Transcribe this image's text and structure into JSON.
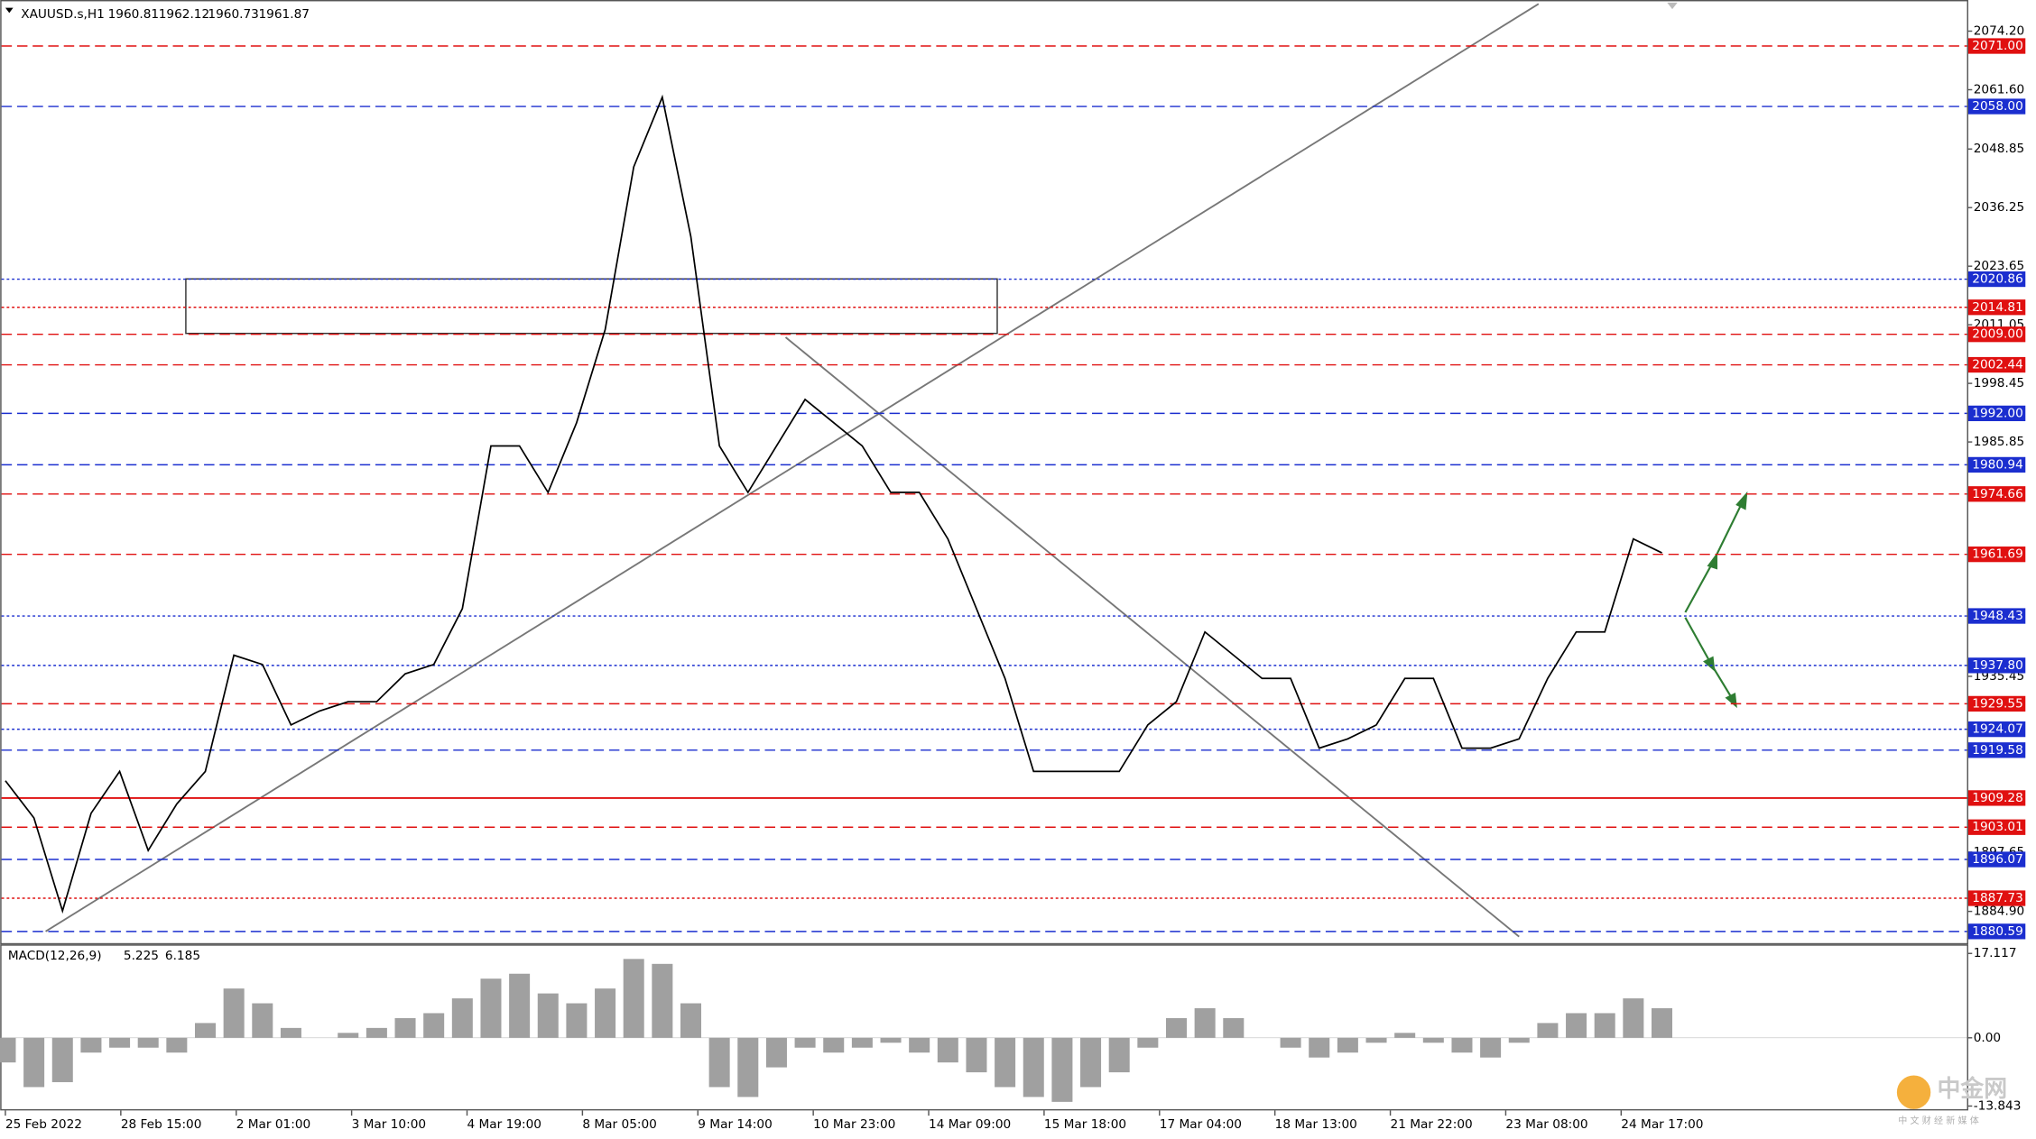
{
  "chart_data": [
    {
      "type": "line",
      "title": "XAUUSD.s,H1",
      "ohlc": [
        1960.81,
        1962.12,
        1960.73,
        1961.87
      ],
      "time_labels": [
        "25 Feb 2022",
        "28 Feb 15:00",
        "2 Mar 01:00",
        "3 Mar 10:00",
        "4 Mar 19:00",
        "8 Mar 05:00",
        "9 Mar 14:00",
        "10 Mar 23:00",
        "14 Mar 09:00",
        "15 Mar 18:00",
        "17 Mar 04:00",
        "18 Mar 13:00",
        "21 Mar 22:00",
        "23 Mar 08:00",
        "24 Mar 17:00"
      ],
      "values": [
        1913,
        1905,
        1885,
        1906,
        1915,
        1898,
        1908,
        1915,
        1940,
        1938,
        1925,
        1928,
        1930,
        1930,
        1936,
        1938,
        1950,
        1985,
        1985,
        1975,
        1990,
        2010,
        2045,
        2060,
        2030,
        1985,
        1975,
        1985,
        1995,
        1990,
        1985,
        1975,
        1975,
        1965,
        1950,
        1935,
        1915,
        1915,
        1915,
        1915,
        1925,
        1930,
        1945,
        1940,
        1935,
        1935,
        1920,
        1922,
        1925,
        1935,
        1935,
        1920,
        1920,
        1922,
        1935,
        1945,
        1945,
        1965,
        1962
      ],
      "color": "#000000",
      "ylim": [
        1878.08,
        2079.5
      ],
      "yticks": [
        {
          "value": 2074.2,
          "label": "2074.20"
        },
        {
          "value": 2061.6,
          "label": "2061.60"
        },
        2048.85,
        2036.25,
        2023.65,
        2011.05,
        1998.45,
        1985.85,
        1935.45,
        1897.65,
        {
          "value": 1884.9,
          "label": "1884.90"
        }
      ],
      "levels": [
        {
          "value": 2071,
          "label": "2071.00",
          "color": "#e01010",
          "style": "dashed"
        },
        {
          "value": 2058,
          "label": "2058.00",
          "color": "#1b2ecf",
          "style": "dashed"
        },
        {
          "value": 2020.86,
          "label": "2020.86",
          "color": "#1b2ecf",
          "style": "dotted"
        },
        {
          "value": 2014.81,
          "label": "2014.81",
          "color": "#e01010",
          "style": "dotted"
        },
        {
          "value": 2009,
          "label": "2009.00",
          "color": "#e01010",
          "style": "dashed"
        },
        {
          "value": 2002.44,
          "label": "2002.44",
          "color": "#e01010",
          "style": "dashed"
        },
        {
          "value": 1992,
          "label": "1992.00",
          "color": "#1b2ecf",
          "style": "dashed"
        },
        {
          "value": 1980.94,
          "label": "1980.94",
          "color": "#1b2ecf",
          "style": "dashed"
        },
        {
          "value": 1974.66,
          "label": "1974.66",
          "color": "#e01010",
          "style": "dashed"
        },
        {
          "value": 1961.69,
          "label": "1961.69",
          "color": "#e01010",
          "style": "dashed"
        },
        {
          "value": 1948.43,
          "label": "1948.43",
          "color": "#1b2ecf",
          "style": "dotted"
        },
        {
          "value": 1937.8,
          "label": "1937.80",
          "color": "#1b2ecf",
          "style": "dotted"
        },
        {
          "value": 1929.55,
          "label": "1929.55",
          "color": "#e01010",
          "style": "dashed"
        },
        {
          "value": 1924.07,
          "label": "1924.07",
          "color": "#1b2ecf",
          "style": "dotted"
        },
        {
          "value": 1919.58,
          "label": "1919.58",
          "color": "#1b2ecf",
          "style": "dashed"
        },
        {
          "value": 1909.28,
          "label": "1909.28",
          "color": "#e01010",
          "style": "solid"
        },
        {
          "value": 1903.01,
          "label": "1903.01",
          "color": "#e01010",
          "style": "dashed"
        },
        {
          "value": 1896.07,
          "label": "1896.07",
          "color": "#1b2ecf",
          "style": "dashed"
        },
        {
          "value": 1887.73,
          "label": "1887.73",
          "color": "#e01010",
          "style": "dotted"
        },
        {
          "value": 1880.59,
          "label": "1880.59",
          "color": "#1b2ecf",
          "style": "dashed"
        }
      ]
    },
    {
      "type": "bar",
      "title": "MACD(12,26,9)",
      "readout": [
        5.225,
        6.185
      ],
      "values": [
        -5,
        -10,
        -9,
        -3,
        -2,
        -2,
        -3,
        3,
        10,
        7,
        2,
        0,
        1,
        2,
        4,
        5,
        8,
        12,
        13,
        9,
        7,
        10,
        16,
        15,
        7,
        -10,
        -12,
        -6,
        -2,
        -3,
        -2,
        -1,
        -3,
        -5,
        -7,
        -10,
        -12,
        -13,
        -10,
        -7,
        -2,
        4,
        6,
        4,
        0,
        -2,
        -4,
        -3,
        -1,
        1,
        -1,
        -3,
        -4,
        -1,
        3,
        5,
        5,
        8,
        6
      ],
      "color": "#a0a0a0",
      "ylim": [
        -14.74,
        18.95
      ],
      "yticks": [
        17.117,
        {
          "value": 0,
          "label": "0.00"
        },
        -13.843
      ]
    }
  ],
  "watermark": {
    "name": "中金网",
    "tagline": "中 文 财 经 新 媒 体"
  }
}
